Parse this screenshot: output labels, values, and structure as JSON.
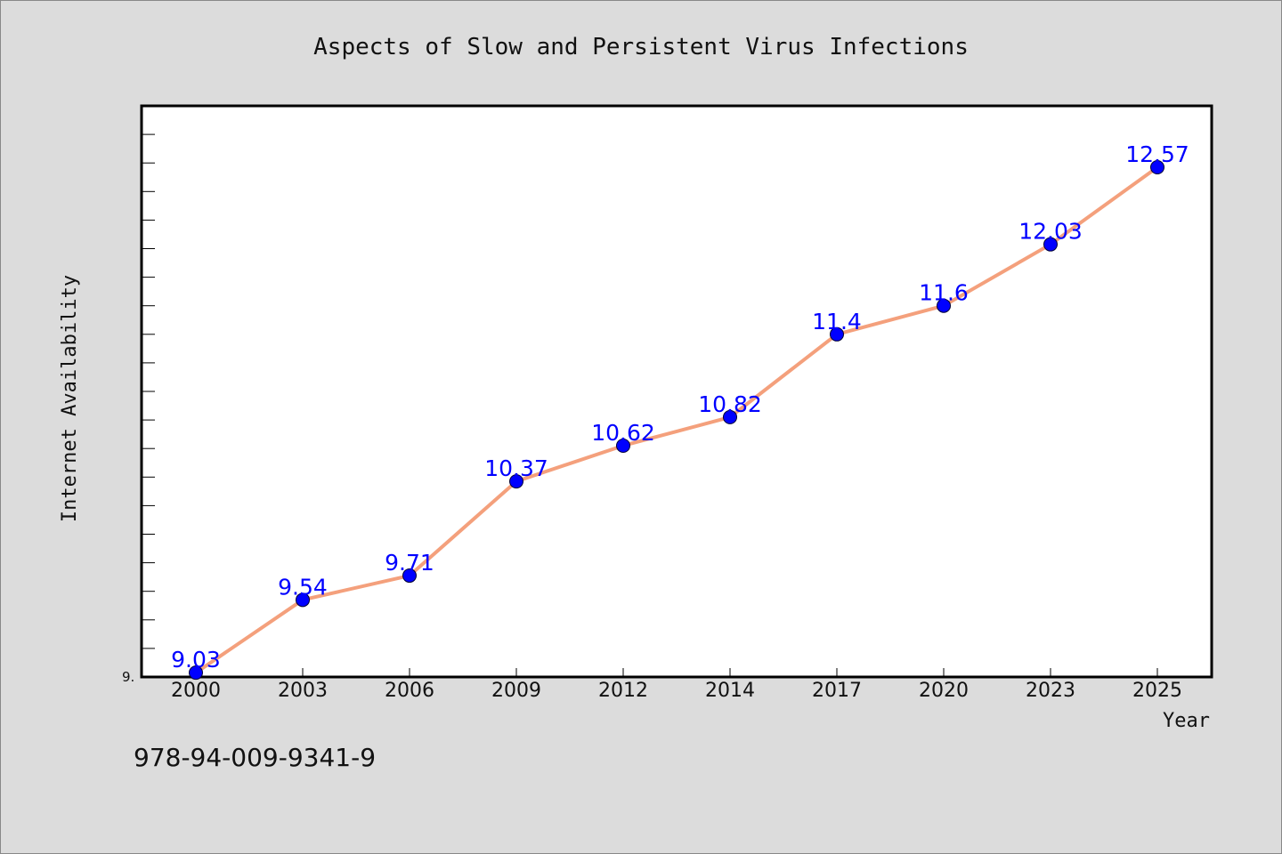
{
  "chart_data": {
    "type": "line",
    "title": "Aspects of Slow and Persistent Virus Infections",
    "xlabel": "Year",
    "ylabel": "Internet Availability",
    "categories": [
      "2000",
      "2003",
      "2006",
      "2009",
      "2012",
      "2014",
      "2017",
      "2020",
      "2023",
      "2025"
    ],
    "series": [
      {
        "values": [
          9.03,
          9.54,
          9.71,
          10.37,
          10.62,
          10.82,
          11.4,
          11.6,
          12.03,
          12.57
        ],
        "data_labels": [
          "9.03",
          "9.54",
          "9.71",
          "10.37",
          "10.62",
          "10.82",
          "11.4",
          "11.6",
          "12.03",
          "12.57"
        ],
        "line_color": "#f4a07c",
        "marker_color": "#0000ff"
      }
    ],
    "y_tick_labels": [
      "9."
    ],
    "ylim": [
      9.0,
      13.0
    ],
    "grid": false,
    "legend": "none"
  },
  "footer": {
    "code": "978-94-009-9341-9"
  },
  "colors": {
    "background": "#dcdcdc",
    "plot_area": "#ffffff",
    "label_color": "#0000ff"
  }
}
